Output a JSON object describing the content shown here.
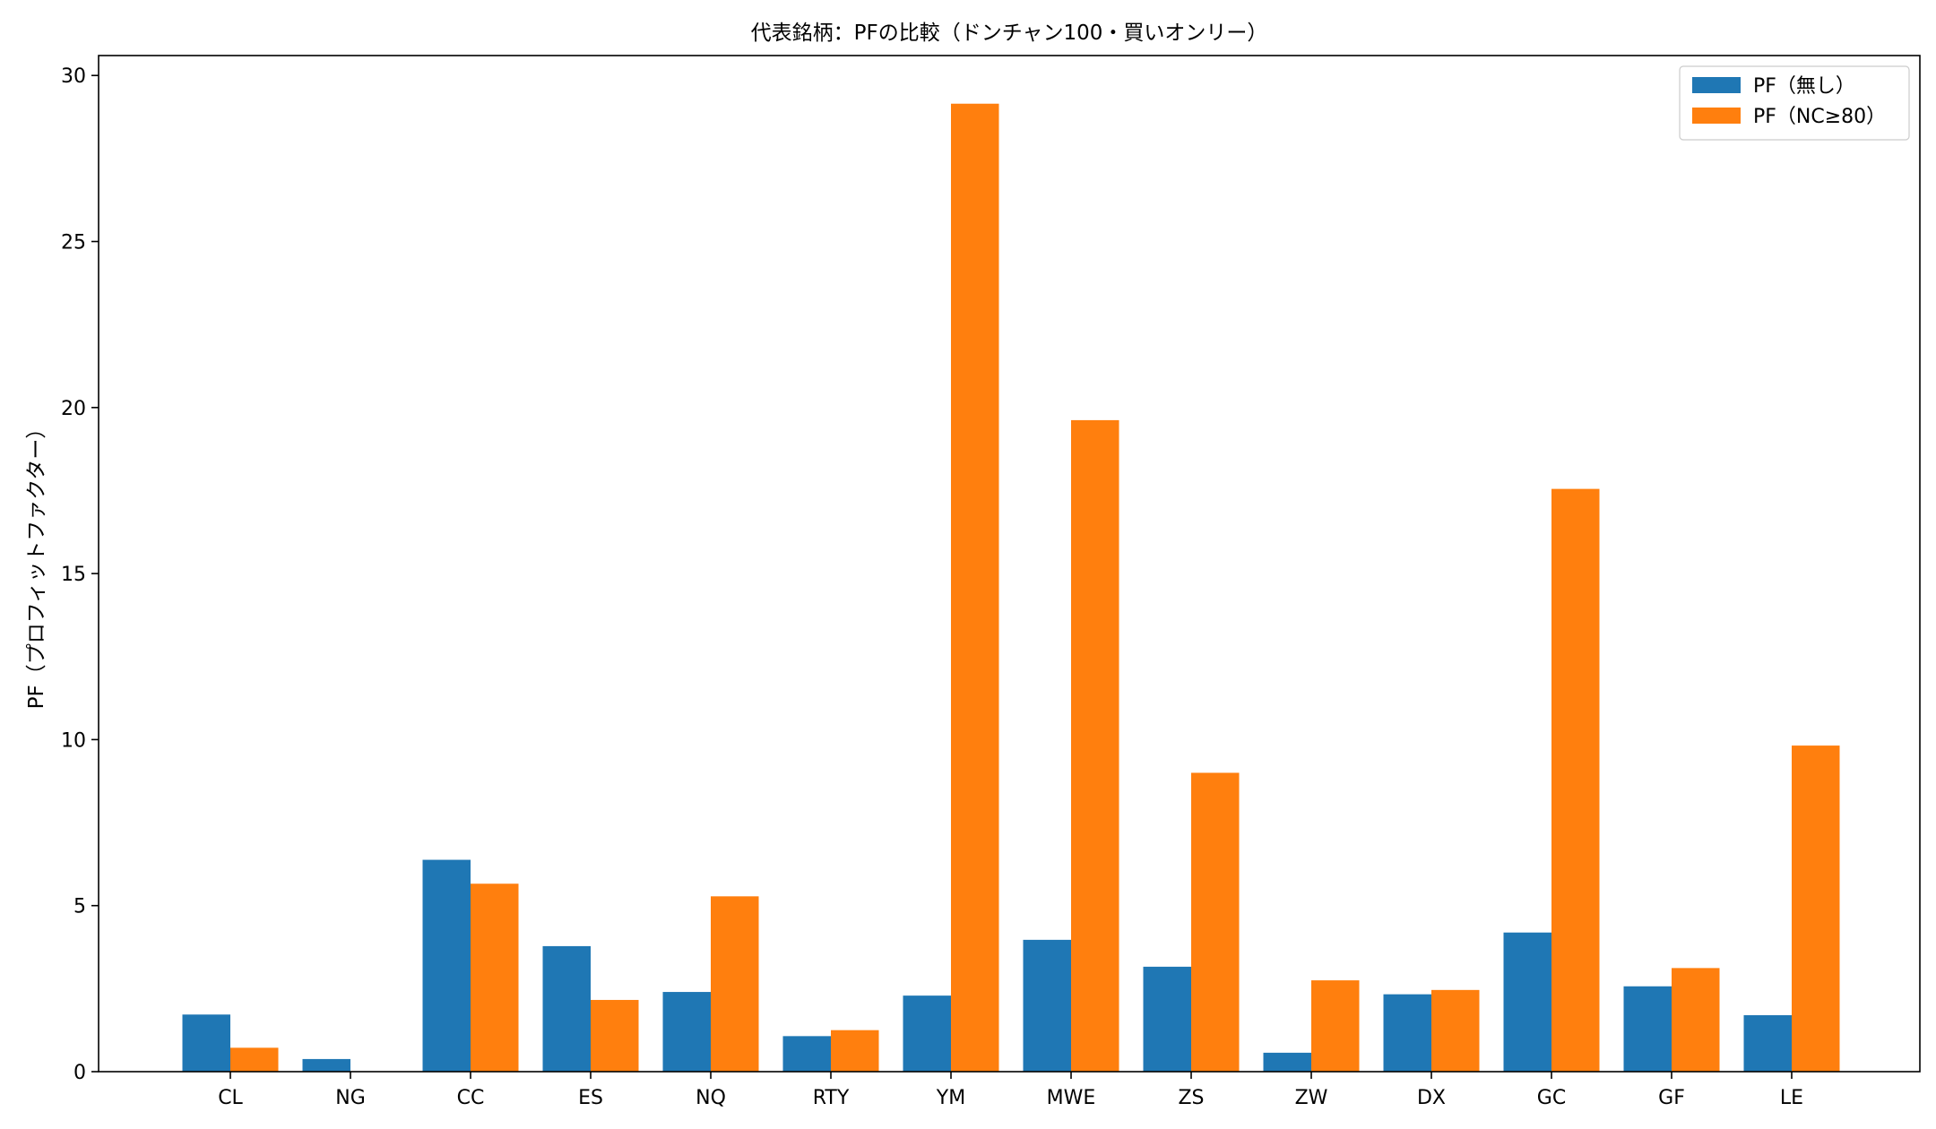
{
  "chart_data": {
    "type": "bar",
    "title": "代表銘柄：PFの比較（ドンチャン100・買いオンリー）",
    "xlabel": "",
    "ylabel": "PF（プロフィットファクター）",
    "ylim": [
      0,
      30.6
    ],
    "yticks": [
      0,
      5,
      10,
      15,
      20,
      25,
      30
    ],
    "grid": false,
    "legend_position": "top-right",
    "categories": [
      "CL",
      "NG",
      "CC",
      "ES",
      "NQ",
      "RTY",
      "YM",
      "MWE",
      "ZS",
      "ZW",
      "DX",
      "GC",
      "GF",
      "LE"
    ],
    "series": [
      {
        "name": "PF（無し）",
        "color": "#1f77b4",
        "values": [
          1.72,
          0.38,
          6.38,
          3.78,
          2.4,
          1.07,
          2.29,
          3.97,
          3.16,
          0.57,
          2.33,
          4.19,
          2.57,
          1.7
        ]
      },
      {
        "name": "PF（NC≥80）",
        "color": "#ff7f0e",
        "values": [
          0.72,
          0,
          5.66,
          2.16,
          5.28,
          1.25,
          29.15,
          19.62,
          9.0,
          2.75,
          2.46,
          17.55,
          3.12,
          9.82
        ]
      }
    ]
  }
}
